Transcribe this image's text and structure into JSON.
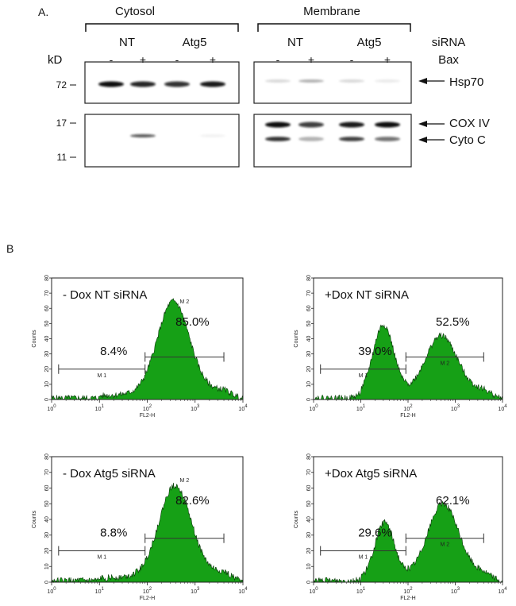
{
  "panel_a": {
    "label": "A.",
    "groups": [
      "Cytosol",
      "Membrane"
    ],
    "sirna_label": "siRNA",
    "bax_label": "Bax",
    "kd_label": "kD",
    "sirna": [
      "NT",
      "Atg5"
    ],
    "bax": [
      "-",
      "+",
      "-",
      "+"
    ],
    "markers": [
      "72",
      "17",
      "11"
    ],
    "proteins": [
      "Hsp70",
      "COX IV",
      "Cyto C"
    ],
    "band_intensity": {
      "cytosol_hsp70": [
        1.0,
        0.9,
        0.85,
        0.95
      ],
      "cytosol_cytoc": [
        0,
        0.7,
        0,
        0.05
      ],
      "membrane_hsp70": [
        0.15,
        0.3,
        0.15,
        0.08
      ],
      "membrane_coxiv": [
        1.0,
        0.8,
        0.95,
        1.0
      ],
      "membrane_cytoc": [
        0.85,
        0.3,
        0.8,
        0.6
      ]
    }
  },
  "panel_b": {
    "label": "B"
  },
  "chart_data": [
    {
      "type": "area",
      "title": "- Dox NT siRNA",
      "xlabel": "FL2-H",
      "ylabel": "Counts",
      "xscale": "log",
      "xlim": [
        1,
        10000
      ],
      "ylim": [
        0,
        80
      ],
      "xticks": [
        "10^0",
        "10^1",
        "10^2",
        "10^3",
        "10^4"
      ],
      "yticks": [
        "0",
        "10",
        "20",
        "30",
        "40",
        "50",
        "60",
        "70",
        "80"
      ],
      "color": "#16a016",
      "peaks": [
        {
          "center": 350,
          "height": 60,
          "width_log": 0.33
        }
      ],
      "gates": [
        {
          "name": "M1",
          "range": [
            1.4,
            90
          ],
          "percent": "8.4%"
        },
        {
          "name": "M2",
          "range": [
            90,
            4000
          ],
          "percent": "85.0%"
        }
      ]
    },
    {
      "type": "area",
      "title": "+Dox NT siRNA",
      "xlabel": "FL2-H",
      "ylabel": "Counts",
      "xscale": "log",
      "xlim": [
        1,
        10000
      ],
      "ylim": [
        0,
        80
      ],
      "xticks": [
        "10^0",
        "10^1",
        "10^2",
        "10^3",
        "10^4"
      ],
      "yticks": [
        "0",
        "10",
        "20",
        "30",
        "40",
        "50",
        "60",
        "70",
        "80"
      ],
      "color": "#16a016",
      "peaks": [
        {
          "center": 30,
          "height": 46,
          "width_log": 0.22
        },
        {
          "center": 500,
          "height": 37,
          "width_log": 0.33
        }
      ],
      "gates": [
        {
          "name": "M1",
          "range": [
            1.4,
            90
          ],
          "percent": "39.0%"
        },
        {
          "name": "M2",
          "range": [
            90,
            4000
          ],
          "percent": "52.5%"
        }
      ]
    },
    {
      "type": "area",
      "title": "- Dox  Atg5 siRNA",
      "xlabel": "FL2-H",
      "ylabel": "Counts",
      "xscale": "log",
      "xlim": [
        1,
        10000
      ],
      "ylim": [
        0,
        80
      ],
      "xticks": [
        "10^0",
        "10^1",
        "10^2",
        "10^3",
        "10^4"
      ],
      "yticks": [
        "0",
        "10",
        "20",
        "30",
        "40",
        "50",
        "60",
        "70",
        "80"
      ],
      "color": "#16a016",
      "peaks": [
        {
          "center": 380,
          "height": 57,
          "width_log": 0.33
        }
      ],
      "gates": [
        {
          "name": "M1",
          "range": [
            1.4,
            90
          ],
          "percent": "8.8%"
        },
        {
          "name": "M2",
          "range": [
            90,
            4000
          ],
          "percent": "82.6%"
        }
      ]
    },
    {
      "type": "area",
      "title": "+Dox Atg5 siRNA",
      "xlabel": "FL2-H",
      "ylabel": "Counts",
      "xscale": "log",
      "xlim": [
        1,
        10000
      ],
      "ylim": [
        0,
        80
      ],
      "xticks": [
        "10^0",
        "10^1",
        "10^2",
        "10^3",
        "10^4"
      ],
      "yticks": [
        "0",
        "10",
        "20",
        "30",
        "40",
        "50",
        "60",
        "70",
        "80"
      ],
      "color": "#16a016",
      "peaks": [
        {
          "center": 32,
          "height": 35,
          "width_log": 0.2
        },
        {
          "center": 550,
          "height": 45,
          "width_log": 0.32
        }
      ],
      "gates": [
        {
          "name": "M1",
          "range": [
            1.4,
            90
          ],
          "percent": "29.6%"
        },
        {
          "name": "M2",
          "range": [
            90,
            4000
          ],
          "percent": "62.1%"
        }
      ]
    }
  ]
}
